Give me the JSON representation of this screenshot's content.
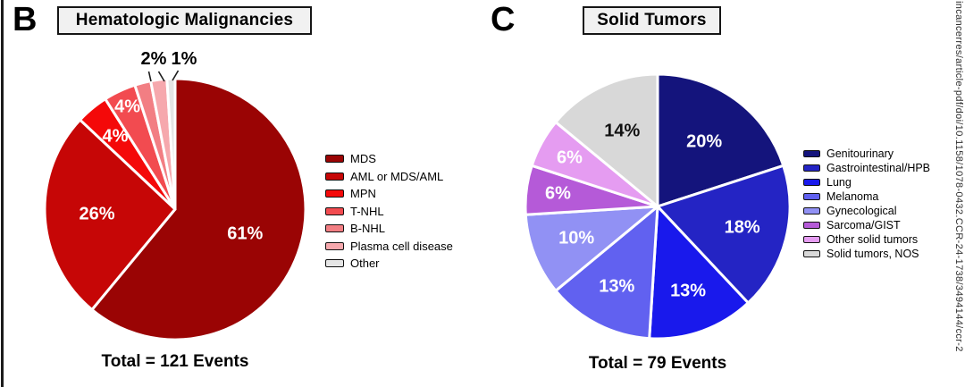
{
  "panels": {
    "b": {
      "letter": "B",
      "title": "Hematologic Malignancies",
      "total": "Total = 121 Events",
      "callouts": [
        "2%",
        "1%"
      ]
    },
    "c": {
      "letter": "C",
      "title": "Solid Tumors",
      "total": "Total = 79 Events"
    }
  },
  "watermark": "incancerres/article-pdf/doi/10.1158/1078-0432.CCR-24-1738/3494144/ccr-2",
  "chart_data": [
    {
      "type": "pie",
      "panel": "B",
      "title": "Hematologic Malignancies",
      "total_events": 121,
      "total_label": "Total = 121 Events",
      "legend_position": "right",
      "start_angle_deg": 0,
      "direction": "clockwise",
      "slices": [
        {
          "label": "MDS",
          "pct": 61,
          "color": "#9A0404",
          "value_label": "61%",
          "label_style": "inside",
          "label_color": "#ffffff",
          "label_r": 0.57
        },
        {
          "label": "AML or MDS/AML",
          "pct": 26,
          "color": "#C60606",
          "value_label": "26%",
          "label_style": "inside",
          "label_color": "#ffffff",
          "label_r": 0.6
        },
        {
          "label": "MPN",
          "pct": 4,
          "color": "#F40909",
          "value_label": "4%",
          "label_style": "inside",
          "label_color": "#ffffff",
          "label_r": 0.72
        },
        {
          "label": "T-NHL",
          "pct": 4,
          "color": "#F24B50",
          "value_label": "4%",
          "label_style": "inside",
          "label_color": "#ffffff",
          "label_r": 0.86
        },
        {
          "label": "B-NHL",
          "pct": 2,
          "color": "#F27E83",
          "value_label": "2%",
          "label_style": "callout",
          "label_color": "#000000",
          "label_r": 1.0
        },
        {
          "label": "Plasma cell disease",
          "pct": 2,
          "color": "#F6A8AD",
          "value_label": "2%",
          "label_style": "callout",
          "label_color": "#000000",
          "label_r": 1.0
        },
        {
          "label": "Other",
          "pct": 1,
          "color": "#E5E5E5",
          "value_label": "1%",
          "label_style": "callout",
          "label_color": "#000000",
          "label_r": 1.0
        }
      ]
    },
    {
      "type": "pie",
      "panel": "C",
      "title": "Solid Tumors",
      "total_events": 79,
      "total_label": "Total = 79 Events",
      "legend_position": "right",
      "start_angle_deg": 0,
      "direction": "clockwise",
      "slices": [
        {
          "label": "Genitourinary",
          "pct": 20,
          "color": "#14147C",
          "value_label": "20%",
          "label_style": "inside",
          "label_color": "#ffffff",
          "label_r": 0.6
        },
        {
          "label": "Gastrointestinal/HPB",
          "pct": 18,
          "color": "#2424C4",
          "value_label": "18%",
          "label_style": "inside",
          "label_color": "#ffffff",
          "label_r": 0.66
        },
        {
          "label": "Lung",
          "pct": 13,
          "color": "#1919EC",
          "value_label": "13%",
          "label_style": "inside",
          "label_color": "#ffffff",
          "label_r": 0.68
        },
        {
          "label": "Melanoma",
          "pct": 13,
          "color": "#6161F0",
          "value_label": "13%",
          "label_style": "inside",
          "label_color": "#ffffff",
          "label_r": 0.68
        },
        {
          "label": "Gynecological",
          "pct": 10,
          "color": "#9191F4",
          "value_label": "10%",
          "label_style": "inside",
          "label_color": "#ffffff",
          "label_r": 0.66
        },
        {
          "label": "Sarcoma/GIST",
          "pct": 6,
          "color": "#B55AD8",
          "value_label": "6%",
          "label_style": "inside",
          "label_color": "#ffffff",
          "label_r": 0.76
        },
        {
          "label": "Other solid tumors",
          "pct": 6,
          "color": "#E59CF1",
          "value_label": "6%",
          "label_style": "inside",
          "label_color": "#ffffff",
          "label_r": 0.76
        },
        {
          "label": "Solid tumors, NOS",
          "pct": 14,
          "color": "#D8D8D8",
          "value_label": "14%",
          "label_style": "inside",
          "label_color": "#111111",
          "label_r": 0.63
        }
      ]
    }
  ]
}
